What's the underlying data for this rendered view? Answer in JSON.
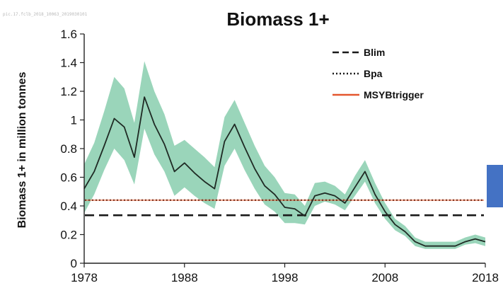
{
  "watermark": "pic.17.fclb_2018_10063_2019030101",
  "chart_data": {
    "type": "line",
    "title": "Biomass 1+",
    "ylabel": "Biomass 1+ in million tonnes",
    "xlabel": "",
    "xlim": [
      1978,
      2018
    ],
    "ylim": [
      0,
      1.6
    ],
    "xticks": [
      1978,
      1988,
      1998,
      2008,
      2018
    ],
    "yticks": [
      0,
      0.2,
      0.4,
      0.6,
      0.8,
      1,
      1.2,
      1.4,
      1.6
    ],
    "ytick_labels": [
      "0",
      "0.2",
      "0.4",
      "0.6",
      "0.8",
      "1",
      "1.2",
      "1.4",
      "1.6"
    ],
    "x": [
      1978,
      1979,
      1980,
      1981,
      1982,
      1983,
      1984,
      1985,
      1986,
      1987,
      1988,
      1989,
      1990,
      1991,
      1992,
      1993,
      1994,
      1995,
      1996,
      1997,
      1998,
      1999,
      2000,
      2001,
      2002,
      2003,
      2004,
      2005,
      2006,
      2007,
      2008,
      2009,
      2010,
      2011,
      2012,
      2013,
      2014,
      2015,
      2016,
      2017,
      2018
    ],
    "series": [
      {
        "role": "estimate",
        "color": "#1f2a24",
        "values": [
          0.52,
          0.64,
          0.82,
          1.01,
          0.95,
          0.74,
          1.16,
          0.97,
          0.83,
          0.64,
          0.7,
          0.63,
          0.57,
          0.52,
          0.85,
          0.97,
          0.81,
          0.66,
          0.54,
          0.48,
          0.39,
          0.38,
          0.33,
          0.47,
          0.49,
          0.47,
          0.42,
          0.53,
          0.64,
          0.48,
          0.36,
          0.27,
          0.22,
          0.15,
          0.12,
          0.12,
          0.12,
          0.12,
          0.15,
          0.17,
          0.15
        ],
        "lower": [
          0.35,
          0.48,
          0.65,
          0.8,
          0.72,
          0.55,
          0.94,
          0.76,
          0.64,
          0.47,
          0.53,
          0.47,
          0.42,
          0.38,
          0.68,
          0.8,
          0.65,
          0.52,
          0.41,
          0.36,
          0.28,
          0.28,
          0.27,
          0.4,
          0.43,
          0.41,
          0.37,
          0.47,
          0.57,
          0.42,
          0.31,
          0.23,
          0.19,
          0.12,
          0.1,
          0.1,
          0.1,
          0.1,
          0.13,
          0.14,
          0.12
        ],
        "upper": [
          0.69,
          0.84,
          1.06,
          1.3,
          1.22,
          0.98,
          1.41,
          1.2,
          1.04,
          0.82,
          0.86,
          0.8,
          0.74,
          0.67,
          1.02,
          1.14,
          0.98,
          0.82,
          0.68,
          0.6,
          0.49,
          0.48,
          0.4,
          0.56,
          0.57,
          0.54,
          0.48,
          0.61,
          0.72,
          0.56,
          0.42,
          0.31,
          0.26,
          0.18,
          0.15,
          0.15,
          0.15,
          0.15,
          0.18,
          0.2,
          0.18
        ],
        "band_color": "#8fd0b2"
      }
    ],
    "reference_lines": [
      {
        "name": "Blim",
        "value": 0.335,
        "style": "dashed",
        "color": "#1a1a1a"
      },
      {
        "name": "Bpa",
        "value": 0.44,
        "style": "dotted",
        "color": "#1a1a1a"
      },
      {
        "name": "MSYBtrigger",
        "value": 0.44,
        "style": "solid",
        "color": "#e4572e"
      }
    ],
    "legend": {
      "placement": "top-right",
      "entries": [
        {
          "label": "Blim",
          "style": "dashed",
          "color": "#1a1a1a"
        },
        {
          "label": "Bpa",
          "style": "dotted",
          "color": "#1a1a1a"
        },
        {
          "label": "MSYBtrigger",
          "style": "solid",
          "color": "#e4572e"
        }
      ]
    },
    "grid": false
  }
}
